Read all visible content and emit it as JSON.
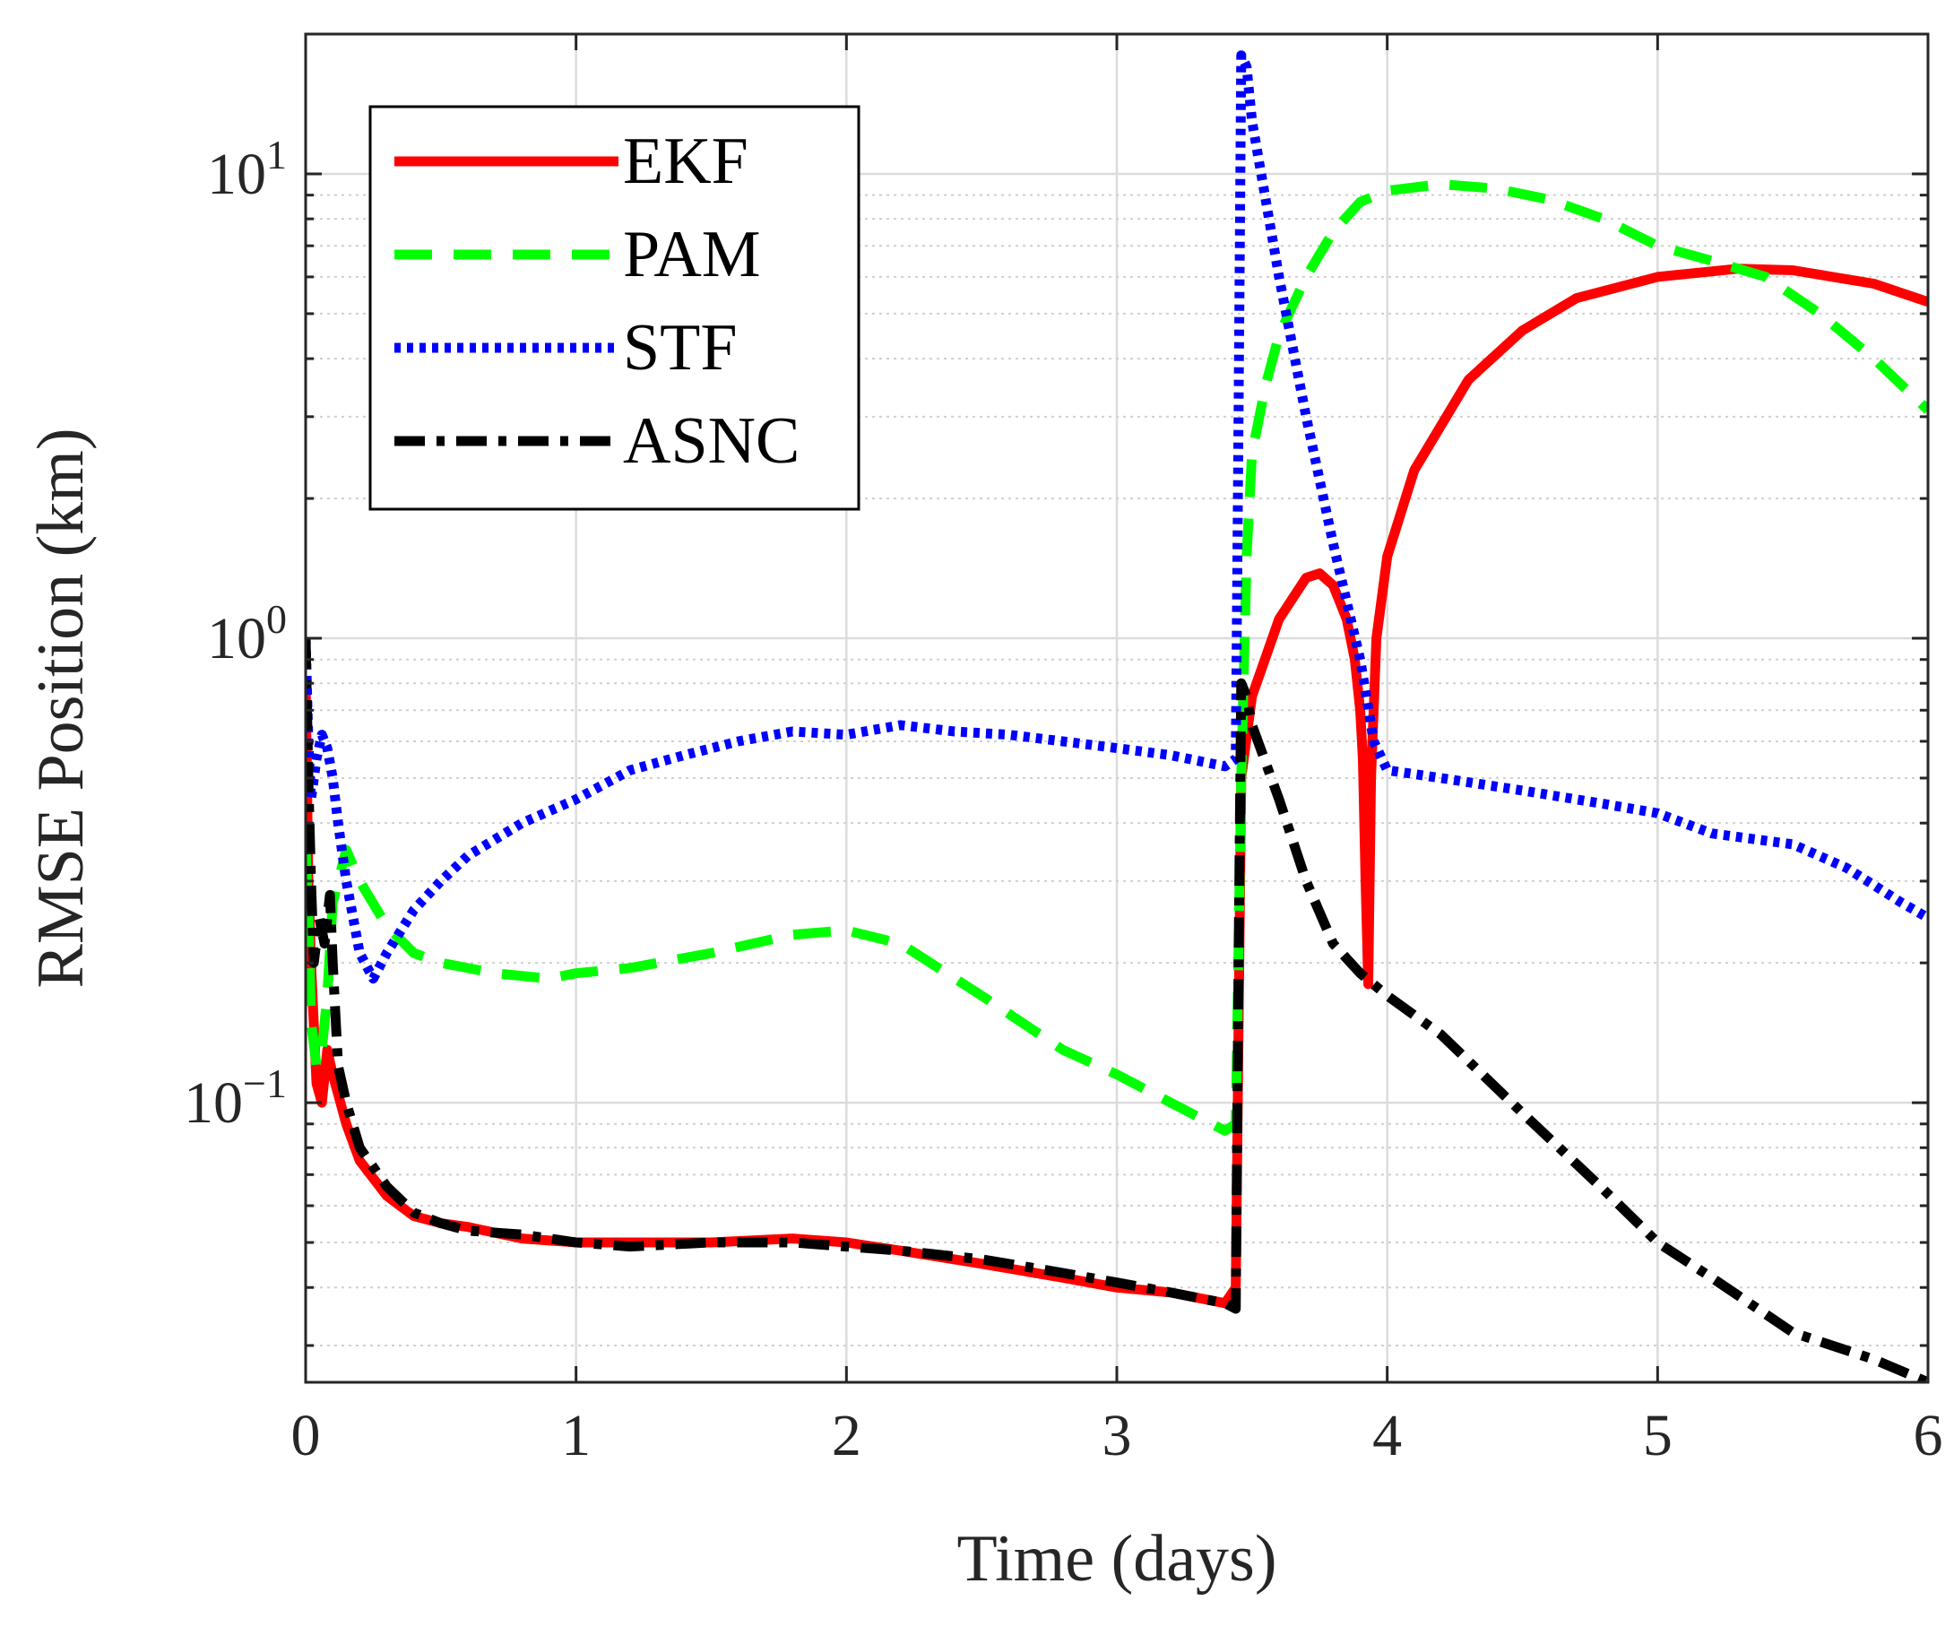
{
  "chart_data": {
    "type": "line",
    "title": "",
    "xlabel": "Time (days)",
    "ylabel": "RMSE Position (km)",
    "xlim": [
      0,
      6
    ],
    "ylim": [
      0.025,
      20
    ],
    "yscale": "log",
    "grid": true,
    "minor_grid": true,
    "legend_position": "top-left",
    "x_ticks": [
      "0",
      "1",
      "2",
      "3",
      "4",
      "5",
      "6"
    ],
    "y_ticks": [
      {
        "value": 0.1,
        "base": "10",
        "exp": "−1"
      },
      {
        "value": 1,
        "base": "10",
        "exp": "0"
      },
      {
        "value": 10,
        "base": "10",
        "exp": "1"
      }
    ],
    "series": [
      {
        "name": "EKF",
        "color": "#ff0000",
        "style": "solid",
        "x": [
          0,
          0.01,
          0.02,
          0.04,
          0.06,
          0.08,
          0.1,
          0.15,
          0.2,
          0.3,
          0.4,
          0.5,
          0.6,
          0.8,
          1.0,
          1.2,
          1.5,
          1.8,
          2.0,
          2.2,
          2.5,
          2.8,
          3.0,
          3.2,
          3.4,
          3.44,
          3.46,
          3.5,
          3.6,
          3.7,
          3.75,
          3.8,
          3.85,
          3.88,
          3.9,
          3.91,
          3.92,
          3.93,
          3.94,
          3.96,
          4.0,
          4.1,
          4.3,
          4.5,
          4.7,
          5.0,
          5.3,
          5.5,
          5.8,
          6.0
        ],
        "y": [
          0.8,
          0.3,
          0.2,
          0.11,
          0.1,
          0.13,
          0.115,
          0.09,
          0.075,
          0.063,
          0.057,
          0.055,
          0.054,
          0.051,
          0.05,
          0.05,
          0.05,
          0.051,
          0.05,
          0.048,
          0.045,
          0.042,
          0.04,
          0.039,
          0.037,
          0.04,
          0.5,
          0.75,
          1.1,
          1.35,
          1.38,
          1.3,
          1.1,
          0.9,
          0.7,
          0.55,
          0.3,
          0.18,
          0.5,
          1.0,
          1.5,
          2.3,
          3.6,
          4.6,
          5.4,
          6.0,
          6.25,
          6.2,
          5.8,
          5.3
        ]
      },
      {
        "name": "PAM",
        "color": "#00ff00",
        "style": "dashed",
        "x": [
          0,
          0.01,
          0.02,
          0.04,
          0.06,
          0.08,
          0.1,
          0.15,
          0.2,
          0.3,
          0.4,
          0.5,
          0.7,
          0.9,
          1.0,
          1.2,
          1.5,
          1.8,
          2.0,
          2.2,
          2.5,
          2.8,
          3.0,
          3.2,
          3.4,
          3.44,
          3.46,
          3.48,
          3.5,
          3.55,
          3.6,
          3.7,
          3.8,
          3.9,
          4.0,
          4.2,
          4.4,
          4.6,
          4.8,
          5.0,
          5.2,
          5.4,
          5.6,
          5.8,
          6.0
        ],
        "y": [
          0.35,
          0.25,
          0.15,
          0.12,
          0.13,
          0.17,
          0.27,
          0.35,
          0.3,
          0.24,
          0.21,
          0.2,
          0.19,
          0.185,
          0.19,
          0.195,
          0.21,
          0.23,
          0.235,
          0.22,
          0.17,
          0.13,
          0.115,
          0.1,
          0.087,
          0.09,
          0.5,
          1.5,
          2.5,
          3.5,
          4.5,
          6.0,
          7.5,
          8.7,
          9.2,
          9.5,
          9.3,
          8.8,
          8.0,
          7.0,
          6.5,
          6.0,
          5.0,
          4.0,
          3.1
        ]
      },
      {
        "name": "STF",
        "color": "#0000ff",
        "style": "dotted",
        "x": [
          0,
          0.01,
          0.02,
          0.04,
          0.06,
          0.08,
          0.1,
          0.12,
          0.15,
          0.2,
          0.25,
          0.3,
          0.4,
          0.5,
          0.6,
          0.8,
          1.0,
          1.2,
          1.4,
          1.6,
          1.8,
          2.0,
          2.2,
          2.4,
          2.6,
          2.8,
          3.0,
          3.2,
          3.4,
          3.44,
          3.45,
          3.46,
          3.48,
          3.5,
          3.6,
          3.7,
          3.8,
          3.9,
          3.95,
          4.0,
          4.2,
          4.5,
          4.8,
          5.0,
          5.2,
          5.5,
          5.7,
          5.9,
          6.0
        ],
        "y": [
          1.0,
          0.6,
          0.45,
          0.55,
          0.62,
          0.58,
          0.5,
          0.4,
          0.3,
          0.21,
          0.185,
          0.21,
          0.26,
          0.3,
          0.34,
          0.4,
          0.45,
          0.52,
          0.56,
          0.6,
          0.63,
          0.62,
          0.65,
          0.63,
          0.62,
          0.6,
          0.58,
          0.56,
          0.53,
          0.55,
          3.0,
          18.0,
          17.0,
          13.0,
          6.0,
          3.0,
          1.6,
          0.9,
          0.6,
          0.52,
          0.5,
          0.47,
          0.44,
          0.42,
          0.38,
          0.36,
          0.32,
          0.27,
          0.25
        ]
      },
      {
        "name": "ASNC",
        "color": "#000000",
        "style": "dashdot",
        "x": [
          0,
          0.01,
          0.02,
          0.03,
          0.05,
          0.07,
          0.09,
          0.1,
          0.12,
          0.15,
          0.2,
          0.3,
          0.4,
          0.5,
          0.6,
          0.8,
          1.0,
          1.2,
          1.5,
          1.8,
          2.0,
          2.2,
          2.5,
          2.8,
          3.0,
          3.2,
          3.4,
          3.44,
          3.45,
          3.46,
          3.48,
          3.5,
          3.6,
          3.7,
          3.8,
          3.9,
          4.0,
          4.2,
          4.5,
          4.8,
          5.0,
          5.2,
          5.5,
          5.8,
          6.0
        ],
        "y": [
          1.0,
          0.5,
          0.3,
          0.2,
          0.25,
          0.22,
          0.28,
          0.2,
          0.12,
          0.1,
          0.08,
          0.066,
          0.058,
          0.055,
          0.053,
          0.052,
          0.05,
          0.049,
          0.05,
          0.05,
          0.049,
          0.048,
          0.046,
          0.043,
          0.041,
          0.039,
          0.037,
          0.036,
          0.2,
          0.8,
          0.75,
          0.65,
          0.45,
          0.3,
          0.22,
          0.19,
          0.17,
          0.14,
          0.095,
          0.065,
          0.05,
          0.042,
          0.032,
          0.028,
          0.025
        ]
      }
    ]
  }
}
